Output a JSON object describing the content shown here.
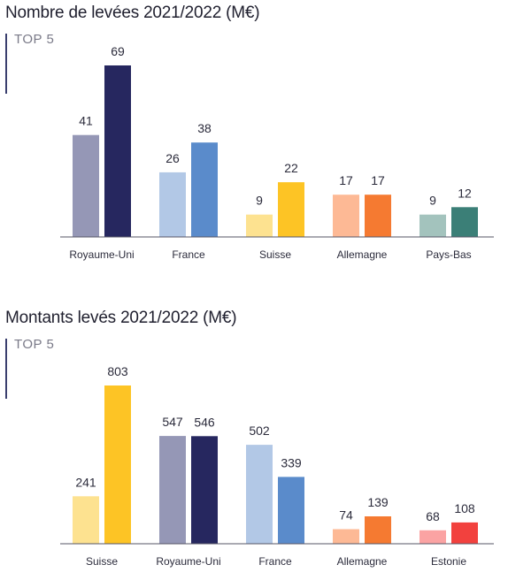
{
  "chart_data": [
    {
      "type": "bar",
      "title": "Nombre de levées 2021/2022 (M€)",
      "badge": "TOP 5",
      "categories": [
        "Royaume-Uni",
        "France",
        "Suisse",
        "Allemagne",
        "Pays-Bas"
      ],
      "series": [
        {
          "values": [
            41,
            26,
            9,
            17,
            9
          ]
        },
        {
          "values": [
            69,
            38,
            22,
            17,
            12
          ]
        }
      ],
      "colors": [
        [
          "#9597b6",
          "#26275f"
        ],
        [
          "#b2c8e6",
          "#5a8bcb"
        ],
        [
          "#fde290",
          "#fdc425"
        ],
        [
          "#fdb995",
          "#f57a31"
        ],
        [
          "#a3c3bd",
          "#3b7f77"
        ]
      ],
      "ylim": [
        0,
        69
      ],
      "grid": false,
      "legend": "none"
    },
    {
      "type": "bar",
      "title": "Montants levés 2021/2022 (M€)",
      "badge": "TOP 5",
      "categories": [
        "Suisse",
        "Royaume-Uni",
        "France",
        "Allemagne",
        "Estonie"
      ],
      "series": [
        {
          "values": [
            241,
            547,
            502,
            74,
            68
          ]
        },
        {
          "values": [
            803,
            546,
            339,
            139,
            108
          ]
        }
      ],
      "colors": [
        [
          "#fde290",
          "#fdc425"
        ],
        [
          "#9597b6",
          "#26275f"
        ],
        [
          "#b2c8e6",
          "#5a8bcb"
        ],
        [
          "#fdb995",
          "#f57a31"
        ],
        [
          "#fba3a3",
          "#f2413e"
        ]
      ],
      "ylim": [
        0,
        803
      ],
      "grid": false,
      "legend": "none"
    }
  ]
}
